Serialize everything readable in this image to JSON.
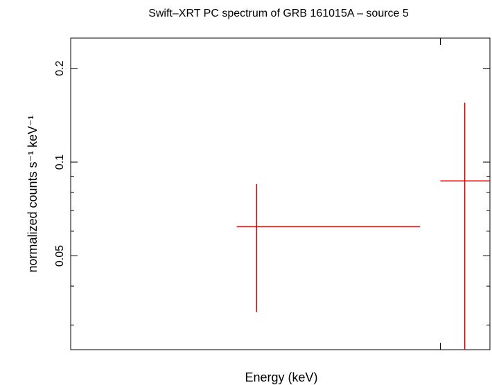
{
  "chart_data": {
    "type": "scatter",
    "title": "Swift–XRT PC spectrum of GRB 161015A – source 5",
    "xlabel": "Energy (keV)",
    "ylabel": "normalized counts s⁻¹ keV⁻¹",
    "y_scale": "log",
    "ylim": [
      0.025,
      0.25
    ],
    "y_ticks": [
      {
        "value": 0.05,
        "label": "0.05"
      },
      {
        "value": 0.1,
        "label": "0.1"
      },
      {
        "value": 0.2,
        "label": "0.2"
      }
    ],
    "y_minor_ticks": [
      0.03,
      0.04,
      0.06,
      0.07,
      0.08,
      0.09
    ],
    "x_ticks": [
      {
        "value": 10,
        "label": ""
      }
    ],
    "x_scale": "log",
    "xlim": [
      0.3,
      16
    ],
    "grid": false,
    "series": [
      {
        "color": "#e00000",
        "points": [
          {
            "x": 1.75,
            "xerr_low": 1.45,
            "xerr_high": 8.25,
            "y": 0.062,
            "yerr_low": 0.033,
            "yerr_high": 0.085
          },
          {
            "x": 12.6,
            "xerr_low": 10.0,
            "xerr_high": 16.0,
            "y": 0.087,
            "yerr_low": 0.025,
            "yerr_high": 0.155
          }
        ]
      }
    ]
  }
}
